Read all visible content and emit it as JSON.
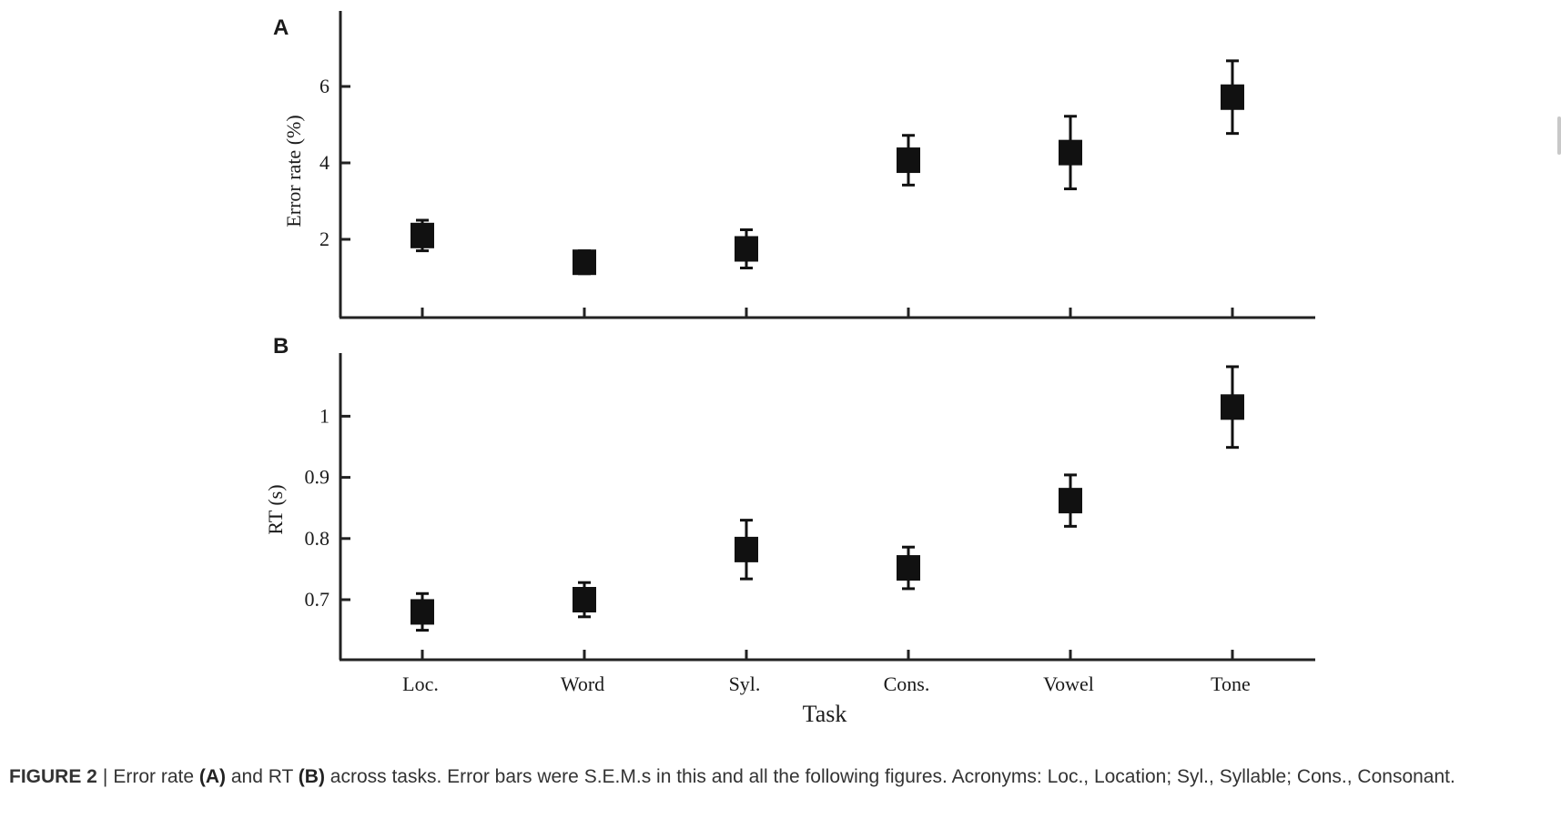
{
  "chart_data": [
    {
      "type": "scatter",
      "panel_label": "A",
      "ylabel": "Error rate (%)",
      "xlabel": "",
      "categories": [
        "Loc.",
        "Word",
        "Syl.",
        "Cons.",
        "Vowel",
        "Tone"
      ],
      "values": [
        2.1,
        1.4,
        1.75,
        4.07,
        4.27,
        5.72
      ],
      "error": [
        0.4,
        0.3,
        0.5,
        0.65,
        0.95,
        0.95
      ],
      "yticks": [
        "2",
        "4",
        "6"
      ],
      "ylim": [
        0,
        8
      ],
      "marker": "square",
      "color": "#111111",
      "grid": false,
      "legend": "none"
    },
    {
      "type": "scatter",
      "panel_label": "B",
      "ylabel": "RT (s)",
      "xlabel": "Task",
      "categories": [
        "Loc.",
        "Word",
        "Syl.",
        "Cons.",
        "Vowel",
        "Tone"
      ],
      "values": [
        0.68,
        0.7,
        0.782,
        0.752,
        0.862,
        1.015
      ],
      "error": [
        0.03,
        0.028,
        0.048,
        0.034,
        0.042,
        0.066
      ],
      "yticks": [
        "0.7",
        "0.8",
        "0.9",
        "1"
      ],
      "ylim": [
        0.6,
        1.1
      ],
      "marker": "square",
      "color": "#111111",
      "grid": false,
      "legend": "none"
    }
  ],
  "caption": {
    "label": "FIGURE 2",
    "separator": "|",
    "t1": "Error rate ",
    "b1": "(A)",
    "t2": " and RT ",
    "b2": "(B)",
    "t3": " across tasks. Error bars were S.E.M.s in this and all the following figures. Acronyms: Loc., Location; Syl., Syllable; Cons., Consonant."
  }
}
